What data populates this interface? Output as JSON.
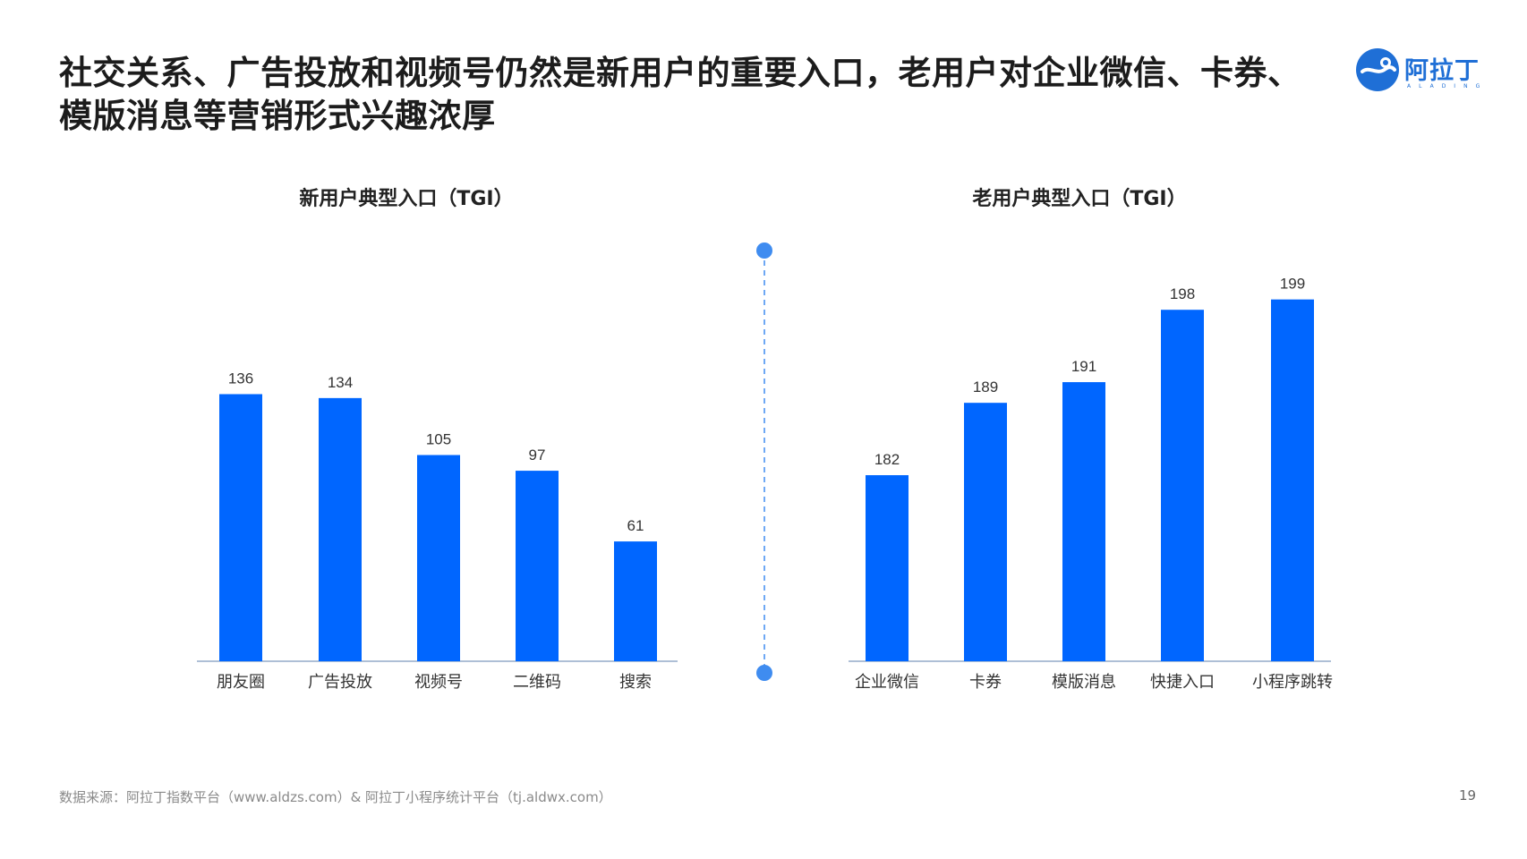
{
  "title": "社交关系、广告投放和视频号仍然是新用户的重要入口，老用户对企业微信、卡券、模版消息等营销形式兴趣浓厚",
  "logo": {
    "text": "阿拉丁",
    "sub": "ALADING"
  },
  "colors": {
    "bar": "#0066ff",
    "axis": "#aebfd6",
    "divider": "#3f8cf0"
  },
  "chart_data": [
    {
      "type": "bar",
      "title": "新用户典型入口（TGI）",
      "categories": [
        "朋友圈",
        "广告投放",
        "视频号",
        "二维码",
        "搜索"
      ],
      "values": [
        136,
        134,
        105,
        97,
        61
      ],
      "ylim": [
        0,
        200
      ]
    },
    {
      "type": "bar",
      "title": "老用户典型入口（TGI）",
      "categories": [
        "企业微信",
        "卡券",
        "模版消息",
        "快捷入口",
        "小程序跳转"
      ],
      "values": [
        182,
        189,
        191,
        198,
        199
      ],
      "ylim": [
        164,
        202
      ]
    }
  ],
  "footer": {
    "source": "数据来源：阿拉丁指数平台（www.aldzs.com）& 阿拉丁小程序统计平台（tj.aldwx.com）",
    "page": "19"
  }
}
